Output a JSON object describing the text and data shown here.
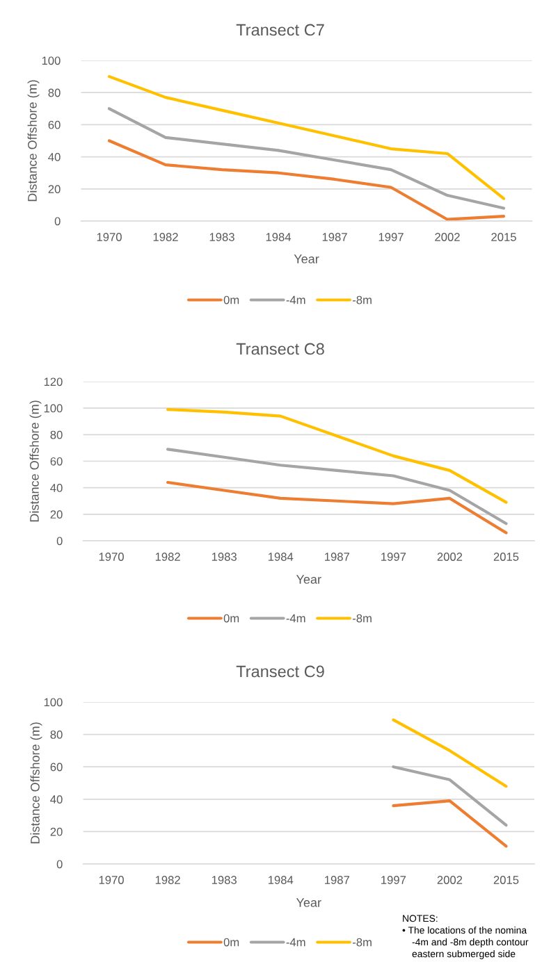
{
  "chart_data": [
    {
      "type": "line",
      "title": "Transect C7",
      "xlabel": "Year",
      "ylabel": "Distance Offshore (m)",
      "categories": [
        "1970",
        "1982",
        "1983",
        "1984",
        "1987",
        "1997",
        "2002",
        "2015"
      ],
      "ylim": [
        0,
        100
      ],
      "yticks": [
        0,
        20,
        40,
        60,
        80,
        100
      ],
      "grid": "y",
      "legend": "bottom",
      "series": [
        {
          "name": "0m",
          "color": "#ed7d31",
          "values": [
            50,
            35,
            32,
            30,
            26,
            21,
            1,
            3
          ]
        },
        {
          "name": "-4m",
          "color": "#a5a5a5",
          "values": [
            70,
            52,
            48,
            44,
            38,
            32,
            16,
            8
          ]
        },
        {
          "name": "-8m",
          "color": "#ffc000",
          "values": [
            90,
            77,
            69,
            61,
            53,
            45,
            42,
            14
          ]
        }
      ]
    },
    {
      "type": "line",
      "title": "Transect C8",
      "xlabel": "Year",
      "ylabel": "Distance Offshore (m)",
      "categories": [
        "1970",
        "1982",
        "1983",
        "1984",
        "1987",
        "1997",
        "2002",
        "2015"
      ],
      "ylim": [
        0,
        120
      ],
      "yticks": [
        0,
        20,
        40,
        60,
        80,
        100,
        120
      ],
      "grid": "y",
      "legend": "bottom",
      "series": [
        {
          "name": "0m",
          "color": "#ed7d31",
          "values": [
            null,
            44,
            38,
            32,
            30,
            28,
            32,
            6
          ]
        },
        {
          "name": "-4m",
          "color": "#a5a5a5",
          "values": [
            null,
            69,
            63,
            57,
            53,
            49,
            38,
            13
          ]
        },
        {
          "name": "-8m",
          "color": "#ffc000",
          "values": [
            null,
            99,
            97,
            94,
            79,
            64,
            53,
            29
          ]
        }
      ]
    },
    {
      "type": "line",
      "title": "Transect C9",
      "xlabel": "Year",
      "ylabel": "Distance Offshore (m)",
      "categories": [
        "1970",
        "1982",
        "1983",
        "1984",
        "1987",
        "1997",
        "2002",
        "2015"
      ],
      "ylim": [
        0,
        100
      ],
      "yticks": [
        0,
        20,
        40,
        60,
        80,
        100
      ],
      "grid": "y",
      "legend": "bottom",
      "series": [
        {
          "name": "0m",
          "color": "#ed7d31",
          "values": [
            null,
            null,
            null,
            null,
            null,
            36,
            39,
            11
          ]
        },
        {
          "name": "-4m",
          "color": "#a5a5a5",
          "values": [
            null,
            null,
            null,
            null,
            null,
            60,
            52,
            24
          ]
        },
        {
          "name": "-8m",
          "color": "#ffc000",
          "values": [
            null,
            null,
            null,
            null,
            null,
            89,
            70,
            48
          ]
        }
      ],
      "annotations": [
        "NOTES:",
        "• The locations of the nomina",
        "-4m and -8m depth contour",
        "eastern submerged side"
      ]
    }
  ]
}
